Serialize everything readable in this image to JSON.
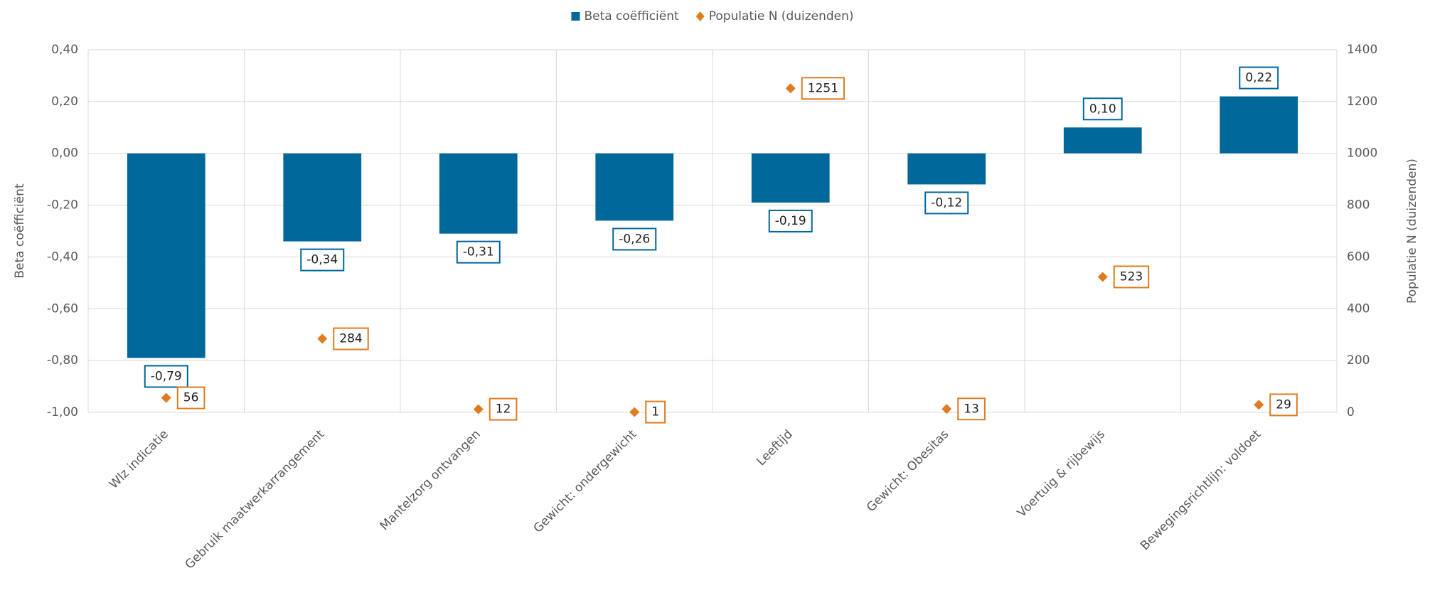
{
  "chart_data": {
    "type": "bar",
    "categories": [
      "Wlz indicatie",
      "Gebruik maatwerkarrangement",
      "Mantelzorg ontvangen",
      "Gewicht: ondergewicht",
      "Leeftijd",
      "Gewicht: Obesitas",
      "Voertuig & rijbewijs",
      "Bewegingsrichtlijn: voldoet"
    ],
    "series": [
      {
        "name": "Beta coëfficiënt",
        "type": "bar",
        "color": "#00679a",
        "values": [
          -0.79,
          -0.34,
          -0.31,
          -0.26,
          -0.19,
          -0.12,
          0.1,
          0.22
        ],
        "value_labels": [
          "-0,79",
          "-0,34",
          "-0,31",
          "-0,26",
          "-0,19",
          "-0,12",
          "0,10",
          "0,22"
        ]
      },
      {
        "name": "Populatie N (duizenden)",
        "type": "scatter",
        "axis": "y2",
        "color": "#e07b20",
        "values": [
          56,
          284,
          12,
          1,
          1251,
          13,
          523,
          29
        ]
      }
    ],
    "ylabel": "Beta coëfficiënt",
    "y2label": "Populatie N (duizenden)",
    "ylim": [
      -1.0,
      0.4
    ],
    "yticks": [
      {
        "value": -1.0,
        "label": "-1,00"
      },
      {
        "value": -0.8,
        "label": "-0,80"
      },
      {
        "value": -0.6,
        "label": "-0,60"
      },
      {
        "value": -0.4,
        "label": "-0,40"
      },
      {
        "value": -0.2,
        "label": "-0,20"
      },
      {
        "value": 0,
        "label": "0,00"
      },
      {
        "value": 0.2,
        "label": "0,20"
      },
      {
        "value": 0.4,
        "label": "0,40"
      }
    ],
    "y2lim": [
      0,
      1400
    ],
    "y2ticks": [
      0,
      200,
      400,
      600,
      800,
      1000,
      1200,
      1400
    ],
    "grid": true,
    "legend": "top"
  }
}
